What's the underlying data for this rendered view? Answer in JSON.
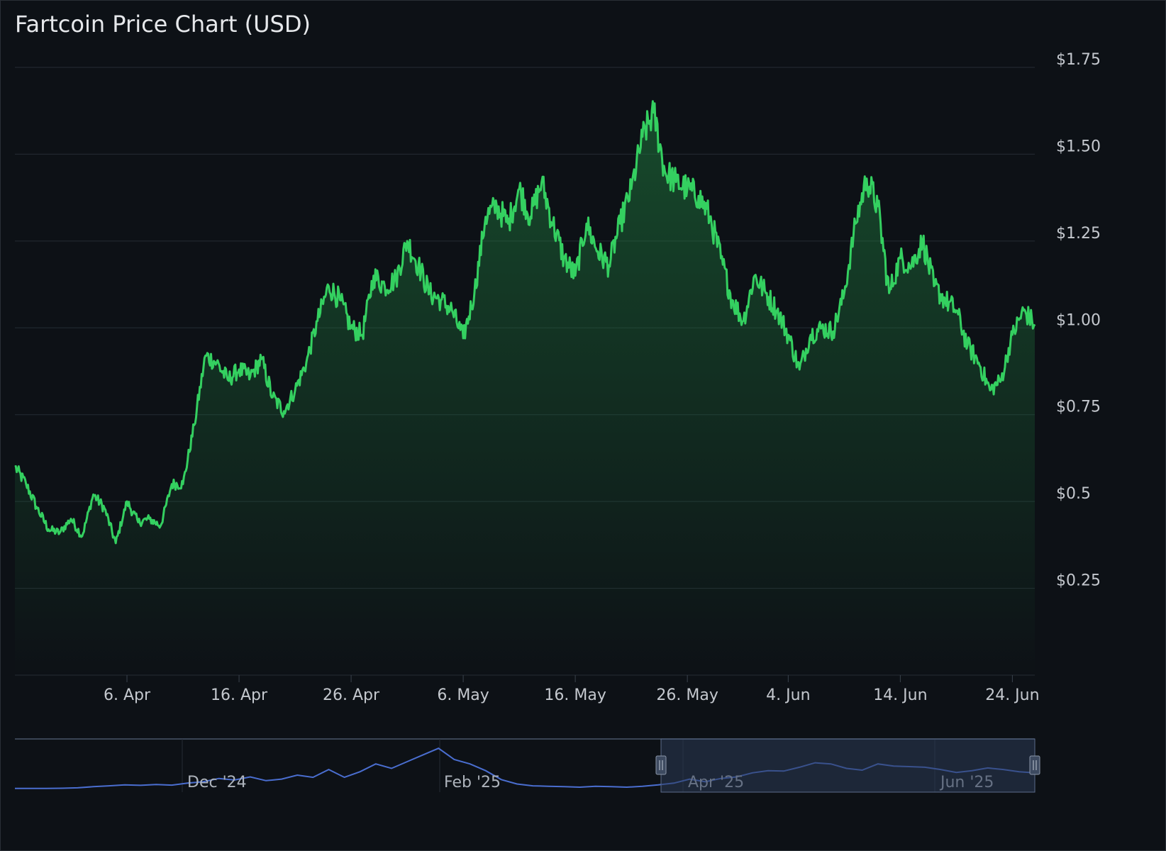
{
  "title": "Fartcoin Price Chart (USD)",
  "colors": {
    "background": "#0d1116",
    "line": "#34d060",
    "grid": "#252c34",
    "navigator_line": "#4a6ed0",
    "navigator_mask": "#2c3a55"
  },
  "chart_data": {
    "type": "area",
    "title": "Fartcoin Price Chart (USD)",
    "x_unit": "date",
    "x_range": [
      "2025-03-27",
      "2025-06-26"
    ],
    "y_range": [
      0,
      1.75
    ],
    "y_ticks": [
      {
        "value": 1.75,
        "label": "$1.75"
      },
      {
        "value": 1.5,
        "label": "$1.50"
      },
      {
        "value": 1.25,
        "label": "$1.25"
      },
      {
        "value": 1.0,
        "label": "$1.00"
      },
      {
        "value": 0.75,
        "label": "$0.75"
      },
      {
        "value": 0.5,
        "label": "$0.5"
      },
      {
        "value": 0.25,
        "label": "$0.25"
      }
    ],
    "x_ticks": [
      {
        "date": "2025-04-06",
        "label": "6. Apr"
      },
      {
        "date": "2025-04-16",
        "label": "16. Apr"
      },
      {
        "date": "2025-04-26",
        "label": "26. Apr"
      },
      {
        "date": "2025-05-06",
        "label": "6. May"
      },
      {
        "date": "2025-05-16",
        "label": "16. May"
      },
      {
        "date": "2025-05-26",
        "label": "26. May"
      },
      {
        "date": "2025-06-04",
        "label": "4. Jun"
      },
      {
        "date": "2025-06-14",
        "label": "14. Jun"
      },
      {
        "date": "2025-06-24",
        "label": "24. Jun"
      }
    ],
    "grid": true,
    "series": [
      {
        "x": [
          "2025-03-27",
          "2025-03-28",
          "2025-03-29",
          "2025-03-30",
          "2025-03-31",
          "2025-04-01",
          "2025-04-02",
          "2025-04-03",
          "2025-04-04",
          "2025-04-05",
          "2025-04-06",
          "2025-04-07",
          "2025-04-08",
          "2025-04-09",
          "2025-04-10",
          "2025-04-11",
          "2025-04-12",
          "2025-04-13",
          "2025-04-14",
          "2025-04-15",
          "2025-04-16",
          "2025-04-17",
          "2025-04-18",
          "2025-04-19",
          "2025-04-20",
          "2025-04-21",
          "2025-04-22",
          "2025-04-23",
          "2025-04-24",
          "2025-04-25",
          "2025-04-26",
          "2025-04-27",
          "2025-04-28",
          "2025-04-29",
          "2025-04-30",
          "2025-05-01",
          "2025-05-02",
          "2025-05-03",
          "2025-05-04",
          "2025-05-05",
          "2025-05-06",
          "2025-05-07",
          "2025-05-08",
          "2025-05-09",
          "2025-05-10",
          "2025-05-11",
          "2025-05-12",
          "2025-05-13",
          "2025-05-14",
          "2025-05-15",
          "2025-05-16",
          "2025-05-17",
          "2025-05-18",
          "2025-05-19",
          "2025-05-20",
          "2025-05-21",
          "2025-05-22",
          "2025-05-23",
          "2025-05-24",
          "2025-05-25",
          "2025-05-26",
          "2025-05-27",
          "2025-05-28",
          "2025-05-29",
          "2025-05-30",
          "2025-05-31",
          "2025-06-01",
          "2025-06-02",
          "2025-06-03",
          "2025-06-04",
          "2025-06-05",
          "2025-06-06",
          "2025-06-07",
          "2025-06-08",
          "2025-06-09",
          "2025-06-10",
          "2025-06-11",
          "2025-06-12",
          "2025-06-13",
          "2025-06-14",
          "2025-06-15",
          "2025-06-16",
          "2025-06-17",
          "2025-06-18",
          "2025-06-19",
          "2025-06-20",
          "2025-06-21",
          "2025-06-22",
          "2025-06-23",
          "2025-06-24",
          "2025-06-25",
          "2025-06-26"
        ],
        "values": [
          0.6,
          0.55,
          0.48,
          0.42,
          0.41,
          0.45,
          0.4,
          0.52,
          0.48,
          0.38,
          0.5,
          0.44,
          0.45,
          0.43,
          0.55,
          0.55,
          0.72,
          0.92,
          0.9,
          0.85,
          0.88,
          0.86,
          0.91,
          0.8,
          0.76,
          0.82,
          0.9,
          1.02,
          1.12,
          1.08,
          1.0,
          0.98,
          1.15,
          1.12,
          1.14,
          1.25,
          1.18,
          1.1,
          1.08,
          1.05,
          0.97,
          1.1,
          1.32,
          1.35,
          1.3,
          1.4,
          1.32,
          1.42,
          1.3,
          1.2,
          1.15,
          1.3,
          1.22,
          1.18,
          1.3,
          1.4,
          1.55,
          1.62,
          1.45,
          1.42,
          1.4,
          1.38,
          1.32,
          1.2,
          1.08,
          1.02,
          1.15,
          1.1,
          1.05,
          0.98,
          0.88,
          0.98,
          1.0,
          0.99,
          1.1,
          1.3,
          1.43,
          1.35,
          1.1,
          1.2,
          1.18,
          1.25,
          1.12,
          1.08,
          1.05,
          0.95,
          0.9,
          0.82,
          0.85,
          0.98,
          1.05,
          1.01
        ]
      }
    ],
    "navigator": {
      "x_labels": [
        "Dec '24",
        "Feb '25",
        "Apr '25",
        "Jun '25"
      ],
      "values": [
        0.1,
        0.1,
        0.1,
        0.11,
        0.13,
        0.18,
        0.22,
        0.26,
        0.24,
        0.28,
        0.25,
        0.34,
        0.4,
        0.55,
        0.48,
        0.62,
        0.45,
        0.52,
        0.7,
        0.6,
        0.95,
        0.6,
        0.85,
        1.2,
        1.0,
        1.3,
        1.6,
        1.9,
        1.4,
        1.2,
        0.9,
        0.5,
        0.3,
        0.22,
        0.2,
        0.18,
        0.16,
        0.2,
        0.18,
        0.16,
        0.2,
        0.26,
        0.34,
        0.52,
        0.4,
        0.55,
        0.62,
        0.8,
        0.9,
        0.88,
        1.05,
        1.25,
        1.2,
        1.0,
        0.92,
        1.2,
        1.1,
        1.08,
        1.05,
        0.95,
        0.82,
        0.9,
        1.02,
        0.95,
        0.85,
        0.8
      ],
      "selection": [
        "2025-03-27",
        "2025-06-26"
      ]
    }
  }
}
